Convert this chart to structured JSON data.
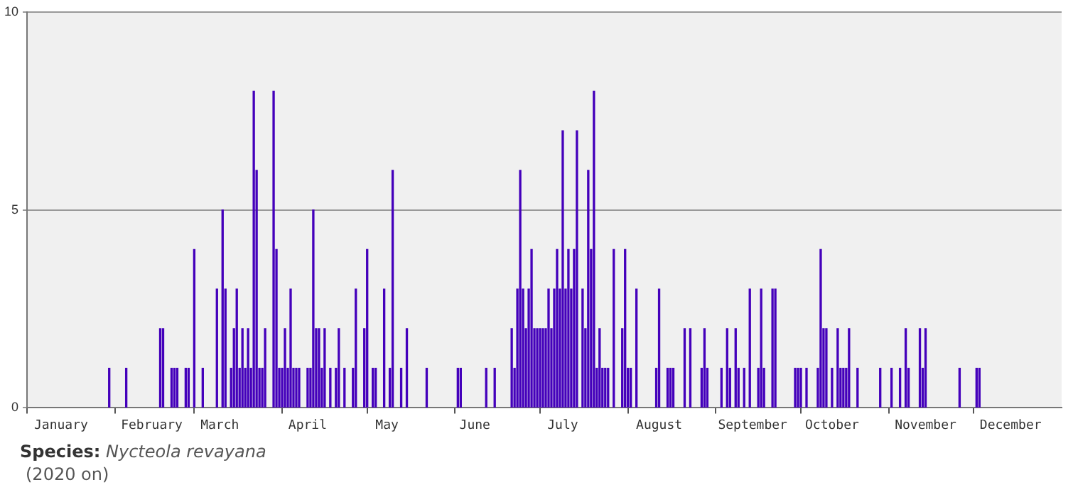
{
  "chart_data": {
    "type": "bar",
    "x": [
      "--01-30",
      "--02-05",
      "--02-17",
      "--02-18",
      "--02-21",
      "--02-22",
      "--02-23",
      "--02-26",
      "--02-27",
      "--03-01",
      "--03-04",
      "--03-09",
      "--03-11",
      "--03-12",
      "--03-14",
      "--03-15",
      "--03-16",
      "--03-17",
      "--03-18",
      "--03-19",
      "--03-20",
      "--03-21",
      "--03-22",
      "--03-23",
      "--03-24",
      "--03-25",
      "--03-26",
      "--03-29",
      "--03-30",
      "--03-31",
      "--04-01",
      "--04-02",
      "--04-03",
      "--04-04",
      "--04-05",
      "--04-06",
      "--04-07",
      "--04-10",
      "--04-11",
      "--04-12",
      "--04-13",
      "--04-14",
      "--04-15",
      "--04-16",
      "--04-18",
      "--04-20",
      "--04-21",
      "--04-23",
      "--04-26",
      "--04-27",
      "--04-30",
      "--05-01",
      "--05-03",
      "--05-04",
      "--05-07",
      "--05-09",
      "--05-10",
      "--05-13",
      "--05-15",
      "--05-22",
      "--06-02",
      "--06-03",
      "--06-12",
      "--06-15",
      "--06-21",
      "--06-22",
      "--06-23",
      "--06-24",
      "--06-25",
      "--06-26",
      "--06-27",
      "--06-28",
      "--06-29",
      "--06-30",
      "--07-01",
      "--07-02",
      "--07-03",
      "--07-04",
      "--07-05",
      "--07-06",
      "--07-07",
      "--07-08",
      "--07-09",
      "--07-10",
      "--07-11",
      "--07-12",
      "--07-13",
      "--07-14",
      "--07-16",
      "--07-17",
      "--07-18",
      "--07-19",
      "--07-20",
      "--07-21",
      "--07-22",
      "--07-23",
      "--07-24",
      "--07-25",
      "--07-27",
      "--07-30",
      "--07-31",
      "--08-01",
      "--08-02",
      "--08-04",
      "--08-11",
      "--08-12",
      "--08-15",
      "--08-16",
      "--08-17",
      "--08-21",
      "--08-23",
      "--08-27",
      "--08-28",
      "--08-29",
      "--09-03",
      "--09-05",
      "--09-06",
      "--09-08",
      "--09-09",
      "--09-11",
      "--09-13",
      "--09-16",
      "--09-17",
      "--09-18",
      "--09-21",
      "--09-22",
      "--09-29",
      "--09-30",
      "--10-01",
      "--10-03",
      "--10-07",
      "--10-08",
      "--10-09",
      "--10-10",
      "--10-12",
      "--10-14",
      "--10-15",
      "--10-16",
      "--10-17",
      "--10-18",
      "--10-21",
      "--10-29",
      "--11-02",
      "--11-05",
      "--11-07",
      "--11-08",
      "--11-12",
      "--11-13",
      "--11-14",
      "--11-26",
      "--12-02",
      "--12-03"
    ],
    "values": [
      1,
      1,
      2,
      2,
      1,
      1,
      1,
      1,
      1,
      4,
      1,
      3,
      5,
      3,
      1,
      2,
      3,
      1,
      2,
      1,
      2,
      1,
      8,
      6,
      1,
      1,
      2,
      8,
      4,
      1,
      1,
      2,
      1,
      3,
      1,
      1,
      1,
      1,
      1,
      5,
      2,
      2,
      1,
      2,
      1,
      1,
      2,
      1,
      1,
      3,
      2,
      4,
      1,
      1,
      3,
      1,
      6,
      1,
      2,
      1,
      1,
      1,
      1,
      1,
      2,
      1,
      3,
      6,
      3,
      2,
      3,
      4,
      2,
      2,
      2,
      2,
      2,
      3,
      2,
      3,
      4,
      3,
      7,
      3,
      4,
      3,
      4,
      7,
      3,
      2,
      6,
      4,
      8,
      1,
      2,
      1,
      1,
      1,
      4,
      2,
      4,
      1,
      1,
      3,
      1,
      3,
      1,
      1,
      1,
      2,
      2,
      1,
      2,
      1,
      1,
      2,
      1,
      2,
      1,
      1,
      3,
      1,
      3,
      1,
      3,
      3,
      1,
      1,
      1,
      1,
      1,
      4,
      2,
      2,
      1,
      2,
      1,
      1,
      1,
      2,
      1,
      1,
      1,
      1,
      2,
      1,
      2,
      1,
      2,
      1,
      1,
      1
    ],
    "color": "#4400bb",
    "xlim": [
      "--01-01",
      "--12-31"
    ],
    "xticks": [
      {
        "value": "--01-01",
        "label": null
      },
      {
        "value": "--01-13",
        "label": "January"
      },
      {
        "value": "--02-01",
        "label": null
      },
      {
        "value": "--02-14",
        "label": "February"
      },
      {
        "value": "--03-01",
        "label": null
      },
      {
        "value": "--03-10",
        "label": "March"
      },
      {
        "value": "--04-01",
        "label": null
      },
      {
        "value": "--04-10",
        "label": "April"
      },
      {
        "value": "--05-01",
        "label": null
      },
      {
        "value": "--05-08",
        "label": "May"
      },
      {
        "value": "--06-01",
        "label": null
      },
      {
        "value": "--06-08",
        "label": "June"
      },
      {
        "value": "--07-01",
        "label": null
      },
      {
        "value": "--07-09",
        "label": "July"
      },
      {
        "value": "--08-01",
        "label": null
      },
      {
        "value": "--08-12",
        "label": "August"
      },
      {
        "value": "--09-01",
        "label": null
      },
      {
        "value": "--09-14",
        "label": "September"
      },
      {
        "value": "--10-01",
        "label": null
      },
      {
        "value": "--10-12",
        "label": "October"
      },
      {
        "value": "--11-01",
        "label": null
      },
      {
        "value": "--11-14",
        "label": "November"
      },
      {
        "value": "--12-01",
        "label": null
      },
      {
        "value": "--12-14",
        "label": "December"
      }
    ],
    "ylim": [
      0,
      10
    ],
    "yticks": [
      0,
      5,
      10
    ],
    "grid": "y",
    "annotations": [
      "Species: Nycteola revayana",
      "(2020 on)"
    ]
  }
}
